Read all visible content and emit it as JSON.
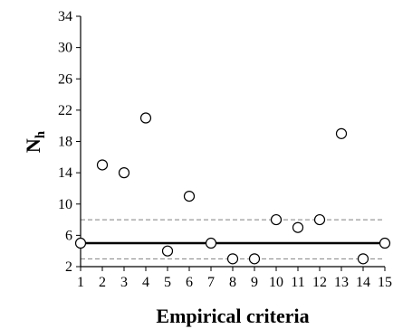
{
  "chart_data": {
    "type": "scatter",
    "xlabel": "Empirical criteria",
    "ylabel_main": "N",
    "ylabel_sub": "h",
    "xlim": [
      1,
      15
    ],
    "ylim": [
      2,
      34
    ],
    "xticks": [
      1,
      2,
      3,
      4,
      5,
      6,
      7,
      8,
      9,
      10,
      11,
      12,
      13,
      14,
      15
    ],
    "yticks": [
      2,
      6,
      10,
      14,
      18,
      22,
      26,
      30,
      34
    ],
    "grid": false,
    "points": [
      {
        "x": 1,
        "y": 5
      },
      {
        "x": 2,
        "y": 15
      },
      {
        "x": 3,
        "y": 14
      },
      {
        "x": 4,
        "y": 21
      },
      {
        "x": 5,
        "y": 4
      },
      {
        "x": 6,
        "y": 11
      },
      {
        "x": 7,
        "y": 5
      },
      {
        "x": 8,
        "y": 3
      },
      {
        "x": 9,
        "y": 3
      },
      {
        "x": 10,
        "y": 8
      },
      {
        "x": 11,
        "y": 7
      },
      {
        "x": 12,
        "y": 8
      },
      {
        "x": 13,
        "y": 19
      },
      {
        "x": 14,
        "y": 3
      },
      {
        "x": 15,
        "y": 5
      }
    ],
    "reference_lines": [
      {
        "y": 5,
        "style": "solid"
      },
      {
        "y": 8,
        "style": "dashed"
      },
      {
        "y": 3,
        "style": "dashed"
      }
    ],
    "colors": {
      "axis": "#000000",
      "marker_fill": "#ffffff",
      "marker_stroke": "#000000",
      "solid_line": "#000000",
      "dashed_line": "#808080"
    }
  }
}
